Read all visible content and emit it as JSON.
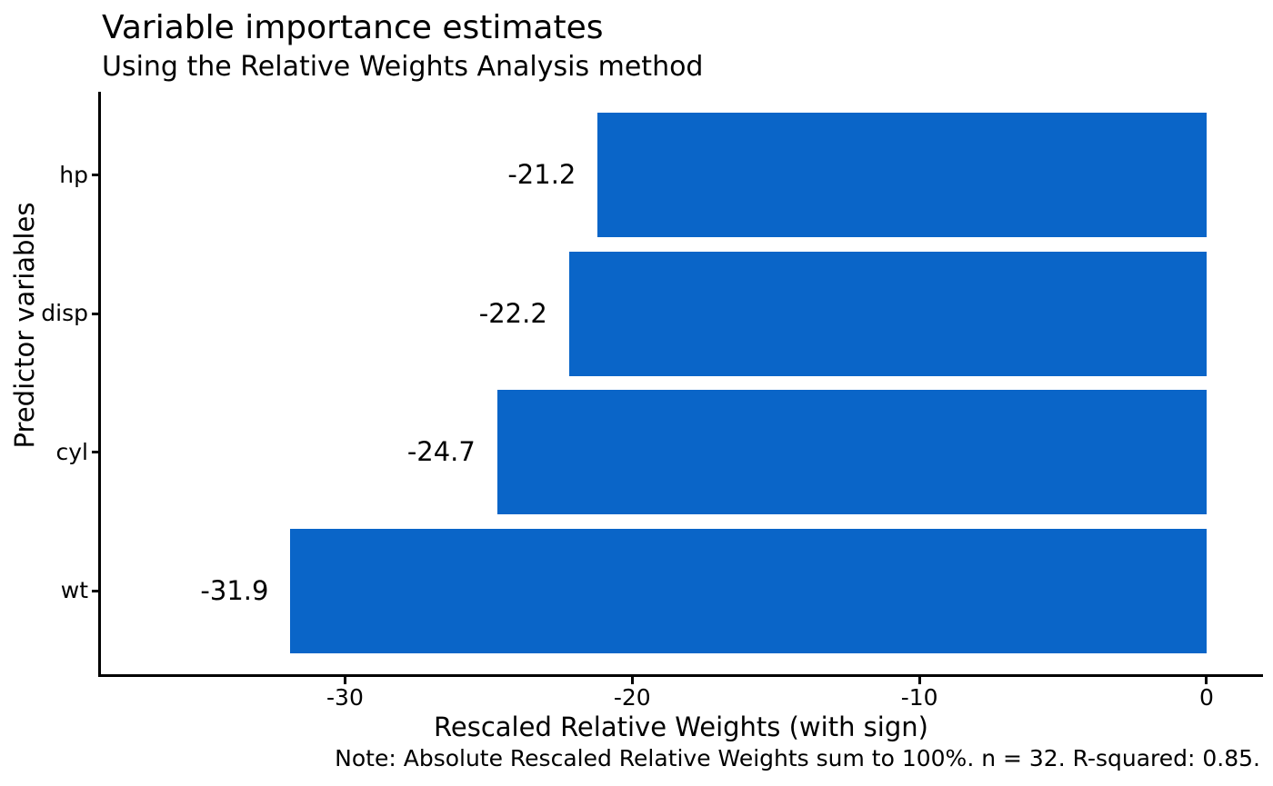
{
  "chart_data": {
    "type": "bar",
    "orientation": "horizontal",
    "title": "Variable importance estimates",
    "subtitle": "Using the Relative Weights Analysis method",
    "xlabel": "Rescaled Relative Weights (with sign)",
    "ylabel": "Predictor variables",
    "caption": "Note: Absolute Rescaled Relative Weights sum to 100%. n = 32. R-squared: 0.85.",
    "categories": [
      "hp",
      "disp",
      "cyl",
      "wt"
    ],
    "values": [
      -21.2,
      -22.2,
      -24.7,
      -31.9
    ],
    "value_labels": [
      "-21.2",
      "-22.2",
      "-24.7",
      "-31.9"
    ],
    "x_ticks": [
      -30,
      -20,
      -10,
      0
    ],
    "x_tick_labels": [
      "-30",
      "-20",
      "-10",
      "0"
    ],
    "xlim": [
      -38.5,
      1.9
    ],
    "grid": "off",
    "legend": "none",
    "bar_color": "#0A65C8",
    "axis_color": "#000000",
    "text_color": "#000000",
    "bar_fraction": 0.9,
    "category_expansion": 0.6
  }
}
